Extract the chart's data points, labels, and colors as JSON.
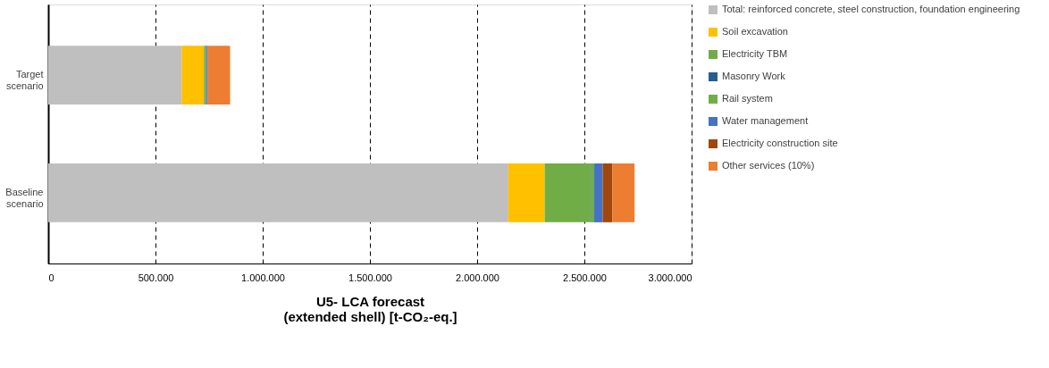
{
  "chart_data": {
    "type": "bar",
    "orientation": "horizontal",
    "stacked": true,
    "categories": [
      "Target scenario",
      "Baseline scenario"
    ],
    "series": [
      {
        "name": "Total: reinforced concrete, steel construction, foundation engineering",
        "color": "#bfbfbf",
        "values": [
          622000,
          2145000
        ]
      },
      {
        "name": "Soil excavation",
        "color": "#ffc000",
        "values": [
          104000,
          170000
        ]
      },
      {
        "name": "Electricity TBM",
        "color": "#70ad47",
        "values": [
          6000,
          218000
        ]
      },
      {
        "name": "Masonry Work",
        "color": "#255e91",
        "values": [
          2000,
          3000
        ]
      },
      {
        "name": "Rail system",
        "color": "#70ad47",
        "values": [
          4000,
          10000
        ]
      },
      {
        "name": "Water management",
        "color": "#4472c4",
        "values": [
          4000,
          39000
        ]
      },
      {
        "name": "Electricity construction site",
        "color": "#9e480e",
        "values": [
          2000,
          45000
        ]
      },
      {
        "name": "Other services (10%)",
        "color": "#ed7d31",
        "values": [
          104000,
          104000
        ]
      }
    ],
    "xlabel": "U5- LCA forecast (extended shell) [t-CO₂-eq.]",
    "xlim": [
      0,
      3000000
    ],
    "xticks": [
      0,
      {
        "value": 500000,
        "label": "500.000"
      },
      {
        "value": 1000000,
        "label": "1.000.000"
      },
      {
        "value": 1500000,
        "label": "1.500.000"
      },
      {
        "value": 2000000,
        "label": "2.000.000"
      },
      {
        "value": 2500000,
        "label": "2.500.000"
      },
      {
        "value": 3000000,
        "label": "3.000.000"
      }
    ],
    "grid": "x",
    "legend": "right"
  }
}
